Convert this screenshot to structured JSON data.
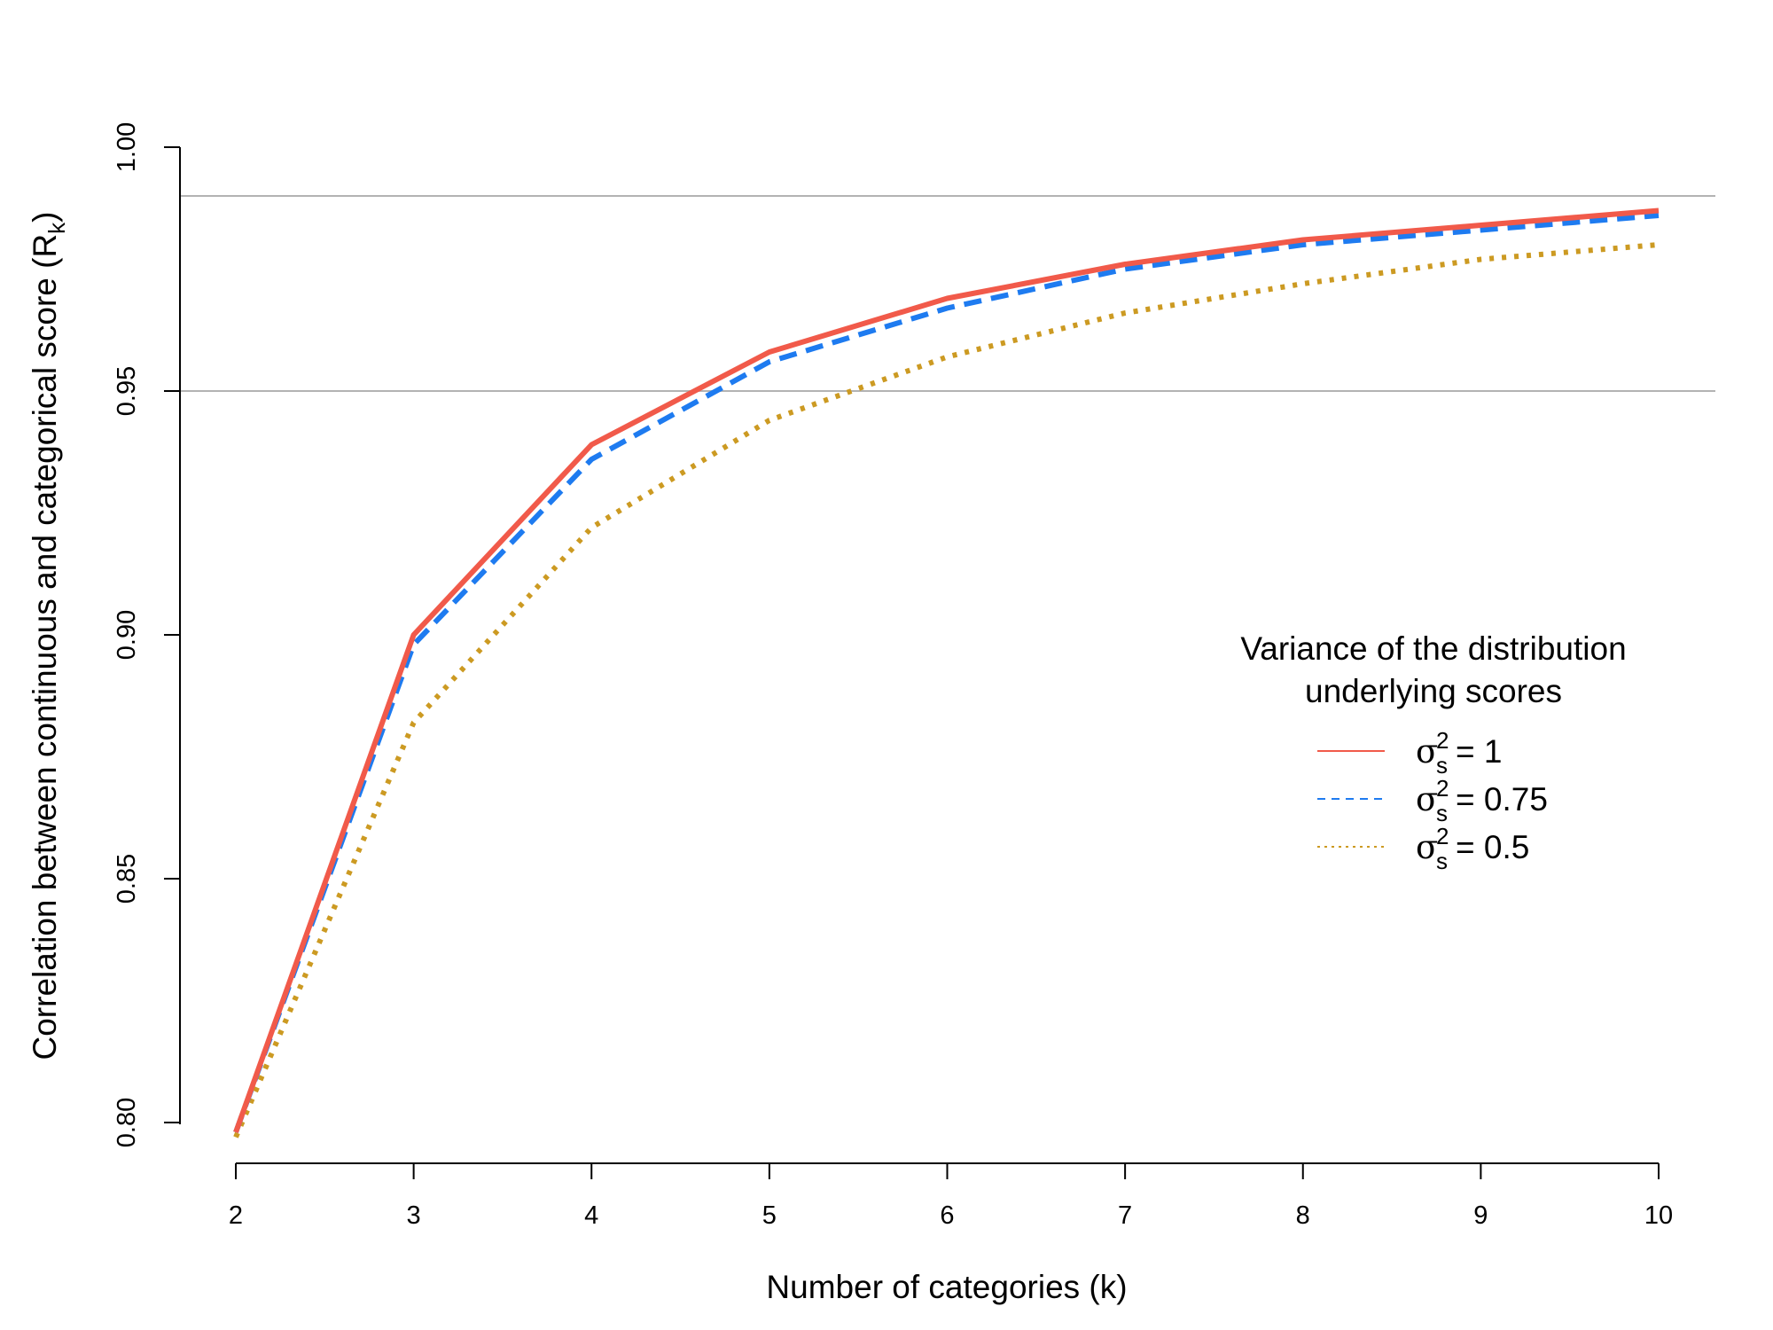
{
  "chart_data": {
    "type": "line",
    "xlabel": "Number of categories (k)",
    "ylabel_main": "Correlation between continuous and categorical score (R",
    "ylabel_sub": "k",
    "ylabel_close": ")",
    "x": [
      2,
      3,
      4,
      5,
      6,
      7,
      8,
      9,
      10
    ],
    "x_ticks": [
      "2",
      "3",
      "4",
      "5",
      "6",
      "7",
      "8",
      "9",
      "10"
    ],
    "y_ticks": [
      "0.80",
      "0.85",
      "0.90",
      "0.95",
      "1.00"
    ],
    "y_tick_values": [
      0.8,
      0.85,
      0.9,
      0.95,
      1.0
    ],
    "xlim": [
      2,
      10
    ],
    "ylim": [
      0.8,
      1.0
    ],
    "reference_lines": [
      0.95,
      0.99
    ],
    "reference_color": "#b3b3b3",
    "legend": {
      "title_line1": "Variance of the distribution",
      "title_line2": "underlying scores",
      "placement": "right-center"
    },
    "series": [
      {
        "symbol": "σ",
        "sub": "s",
        "sup": "2",
        "eq": "= 1",
        "color": "#f15a4a",
        "style": "solid",
        "values": [
          0.798,
          0.9,
          0.939,
          0.958,
          0.969,
          0.976,
          0.981,
          0.984,
          0.987
        ]
      },
      {
        "symbol": "σ",
        "sub": "s",
        "sup": "2",
        "eq": "= 0.75",
        "color": "#1e7bf0",
        "style": "dashed",
        "values": [
          0.798,
          0.898,
          0.936,
          0.956,
          0.967,
          0.975,
          0.98,
          0.983,
          0.986
        ]
      },
      {
        "symbol": "σ",
        "sub": "s",
        "sup": "2",
        "eq": "= 0.5",
        "color": "#cc9a22",
        "style": "dotted",
        "values": [
          0.797,
          0.882,
          0.922,
          0.944,
          0.957,
          0.966,
          0.972,
          0.977,
          0.98
        ]
      }
    ]
  }
}
